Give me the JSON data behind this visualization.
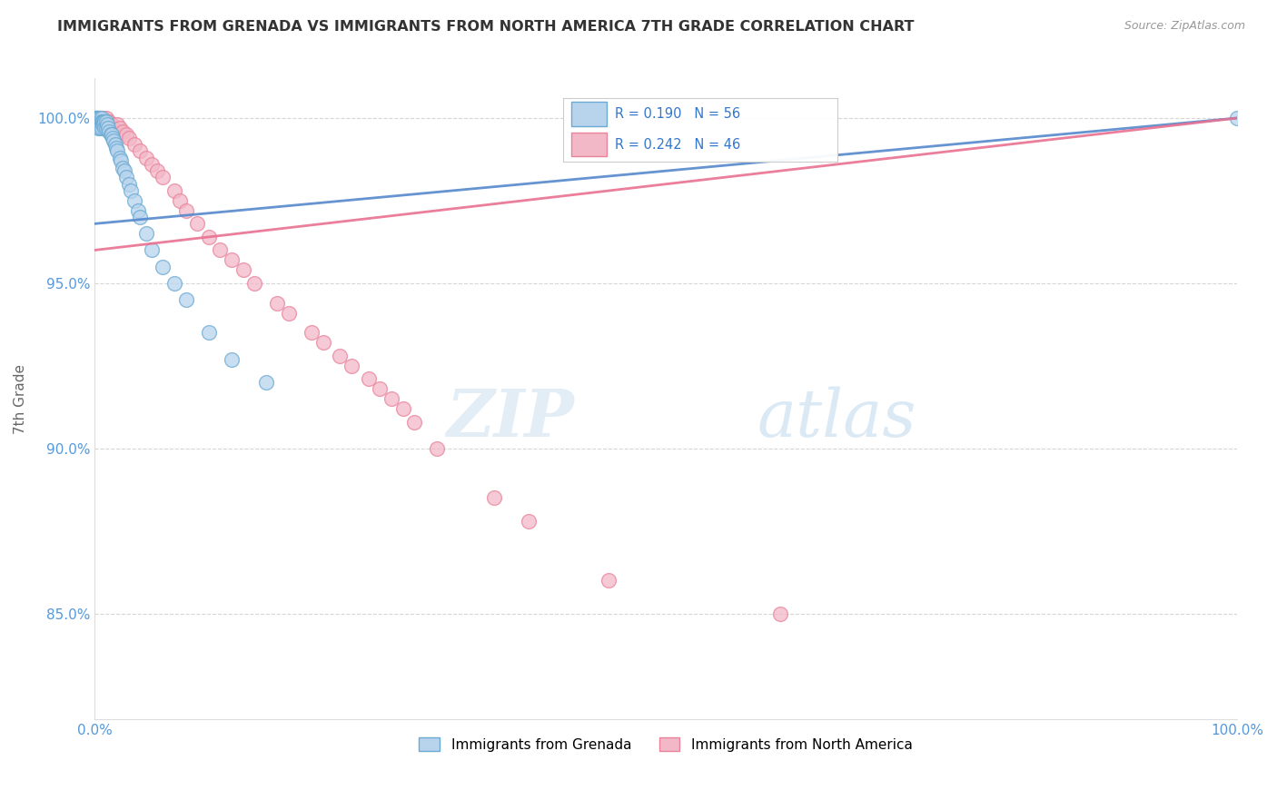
{
  "title": "IMMIGRANTS FROM GRENADA VS IMMIGRANTS FROM NORTH AMERICA 7TH GRADE CORRELATION CHART",
  "source": "Source: ZipAtlas.com",
  "ylabel": "7th Grade",
  "xlim": [
    0.0,
    1.0
  ],
  "ylim": [
    0.818,
    1.012
  ],
  "yticks": [
    0.85,
    0.9,
    0.95,
    1.0
  ],
  "ytick_labels": [
    "85.0%",
    "90.0%",
    "95.0%",
    "100.0%"
  ],
  "xticks": [
    0.0,
    0.1,
    0.2,
    0.3,
    0.4,
    0.5,
    0.6,
    0.7,
    0.8,
    0.9,
    1.0
  ],
  "xtick_labels": [
    "0.0%",
    "",
    "",
    "",
    "",
    "",
    "",
    "",
    "",
    "",
    "100.0%"
  ],
  "legend_labels": [
    "Immigrants from Grenada",
    "Immigrants from North America"
  ],
  "blue_color": "#b8d4ec",
  "pink_color": "#f2b8c8",
  "blue_edge_color": "#6aaad4",
  "pink_edge_color": "#e8849a",
  "blue_line_color": "#5588cc",
  "pink_line_color": "#e87090",
  "blue_R": 0.19,
  "blue_N": 56,
  "pink_R": 0.242,
  "pink_N": 46,
  "blue_scatter_x": [
    0.001,
    0.001,
    0.001,
    0.002,
    0.002,
    0.002,
    0.003,
    0.003,
    0.003,
    0.003,
    0.004,
    0.004,
    0.004,
    0.005,
    0.005,
    0.005,
    0.006,
    0.006,
    0.006,
    0.007,
    0.007,
    0.008,
    0.008,
    0.009,
    0.009,
    0.01,
    0.01,
    0.011,
    0.012,
    0.013,
    0.014,
    0.015,
    0.016,
    0.017,
    0.018,
    0.019,
    0.02,
    0.022,
    0.023,
    0.025,
    0.026,
    0.028,
    0.03,
    0.032,
    0.035,
    0.038,
    0.04,
    0.045,
    0.05,
    0.06,
    0.07,
    0.08,
    0.1,
    0.12,
    0.15,
    1.0
  ],
  "blue_scatter_y": [
    1.0,
    1.0,
    0.999,
    1.0,
    1.0,
    0.999,
    1.0,
    0.999,
    0.998,
    0.997,
    1.0,
    0.999,
    0.998,
    1.0,
    0.999,
    0.997,
    1.0,
    0.999,
    0.997,
    0.999,
    0.998,
    0.999,
    0.998,
    0.999,
    0.997,
    0.999,
    0.997,
    0.998,
    0.997,
    0.996,
    0.995,
    0.995,
    0.994,
    0.993,
    0.992,
    0.991,
    0.99,
    0.988,
    0.987,
    0.985,
    0.984,
    0.982,
    0.98,
    0.978,
    0.975,
    0.972,
    0.97,
    0.965,
    0.96,
    0.955,
    0.95,
    0.945,
    0.935,
    0.927,
    0.92,
    1.0
  ],
  "pink_scatter_x": [
    0.002,
    0.003,
    0.005,
    0.007,
    0.008,
    0.01,
    0.012,
    0.013,
    0.015,
    0.017,
    0.02,
    0.022,
    0.025,
    0.028,
    0.03,
    0.035,
    0.04,
    0.045,
    0.05,
    0.055,
    0.06,
    0.07,
    0.075,
    0.08,
    0.09,
    0.1,
    0.11,
    0.12,
    0.13,
    0.14,
    0.16,
    0.17,
    0.19,
    0.2,
    0.215,
    0.225,
    0.24,
    0.25,
    0.26,
    0.27,
    0.28,
    0.3,
    0.35,
    0.38,
    0.45,
    0.6
  ],
  "pink_scatter_y": [
    1.0,
    1.0,
    1.0,
    1.0,
    0.999,
    1.0,
    0.999,
    0.999,
    0.998,
    0.997,
    0.998,
    0.997,
    0.996,
    0.995,
    0.994,
    0.992,
    0.99,
    0.988,
    0.986,
    0.984,
    0.982,
    0.978,
    0.975,
    0.972,
    0.968,
    0.964,
    0.96,
    0.957,
    0.954,
    0.95,
    0.944,
    0.941,
    0.935,
    0.932,
    0.928,
    0.925,
    0.921,
    0.918,
    0.915,
    0.912,
    0.908,
    0.9,
    0.885,
    0.878,
    0.86,
    0.85
  ],
  "blue_line_x0": 0.0,
  "blue_line_y0": 0.968,
  "blue_line_x1": 1.0,
  "blue_line_y1": 1.0,
  "pink_line_x0": 0.0,
  "pink_line_y0": 0.96,
  "pink_line_x1": 1.0,
  "pink_line_y1": 1.0,
  "watermark_zip": "ZIP",
  "watermark_atlas": "atlas",
  "background_color": "#ffffff",
  "grid_color": "#cccccc"
}
